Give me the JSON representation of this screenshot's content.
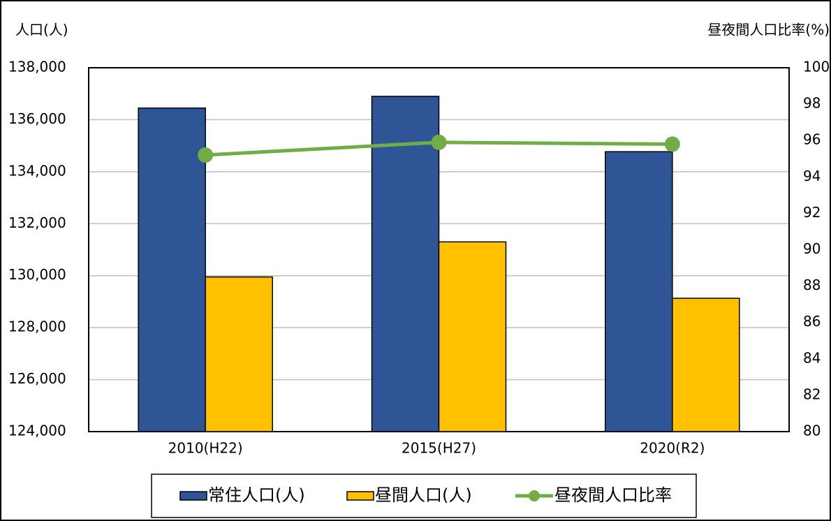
{
  "chart_data": {
    "type": "bar_line",
    "y_label": "人口(人)",
    "y2_label": "昼夜間人口比率(%)",
    "categories": [
      "2010(H22)",
      "2015(H27)",
      "2020(R2)"
    ],
    "series": [
      {
        "name": "常住人口(人)",
        "color": "#2f5597",
        "type": "bar",
        "values": [
          136450,
          136900,
          134770
        ]
      },
      {
        "name": "昼間人口(人)",
        "color": "#ffc000",
        "type": "bar",
        "values": [
          129950,
          131300,
          129130
        ]
      },
      {
        "name": "昼夜間人口比率",
        "color": "#70ad47",
        "type": "line",
        "axis": "y2",
        "values": [
          95.2,
          95.9,
          95.8
        ]
      }
    ],
    "ylim": [
      124000,
      138000
    ],
    "yticks": [
      {
        "value": 124000,
        "label": "124,000"
      },
      {
        "value": 126000,
        "label": "126,000"
      },
      {
        "value": 128000,
        "label": "128,000"
      },
      {
        "value": 130000,
        "label": "130,000"
      },
      {
        "value": 132000,
        "label": "132,000"
      },
      {
        "value": 134000,
        "label": "134,000"
      },
      {
        "value": 136000,
        "label": "136,000"
      },
      {
        "value": 138000,
        "label": "138,000"
      }
    ],
    "y2lim": [
      80,
      100
    ],
    "y2ticks": [
      80,
      82,
      84,
      86,
      88,
      90,
      92,
      94,
      96,
      98,
      100
    ],
    "grid": true,
    "legend": "bottom"
  }
}
